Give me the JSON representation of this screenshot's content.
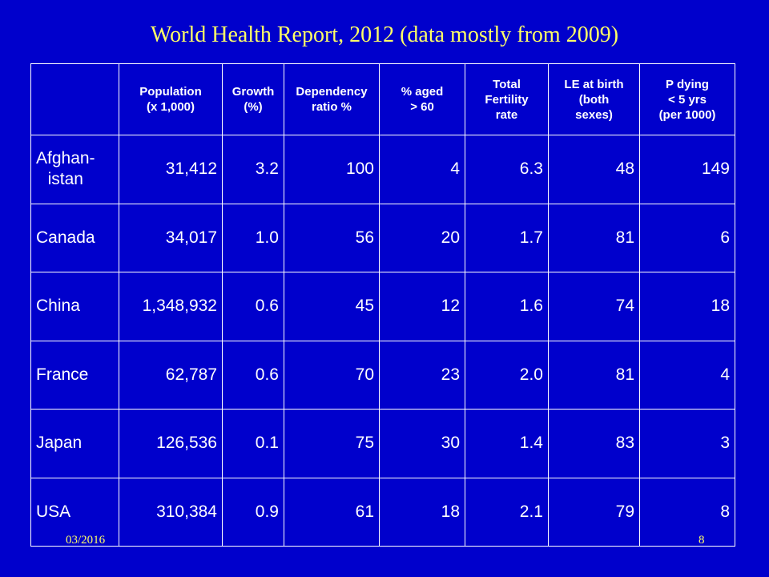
{
  "title": "World Health Report, 2012 (data mostly from 2009)",
  "table": {
    "headers": [
      "",
      "Population\n(x 1,000)",
      "Growth\n(%)",
      "Dependency\nratio %",
      "% aged\n> 60",
      "Total\nFertility\nrate",
      "LE at birth\n(both\nsexes)",
      "P dying\n< 5 yrs\n(per 1000)"
    ],
    "rows": [
      {
        "country": "Afghan-\nistan",
        "values": [
          "31,412",
          "3.2",
          "100",
          "4",
          "6.3",
          "48",
          "149"
        ]
      },
      {
        "country": "Canada",
        "values": [
          "34,017",
          "1.0",
          "56",
          "20",
          "1.7",
          "81",
          "6"
        ]
      },
      {
        "country": "China",
        "values": [
          "1,348,932",
          "0.6",
          "45",
          "12",
          "1.6",
          "74",
          "18"
        ]
      },
      {
        "country": "France",
        "values": [
          "62,787",
          "0.6",
          "70",
          "23",
          "2.0",
          "81",
          "4"
        ]
      },
      {
        "country": "Japan",
        "values": [
          "126,536",
          "0.1",
          "75",
          "30",
          "1.4",
          "83",
          "3"
        ]
      },
      {
        "country": "USA",
        "values": [
          "310,384",
          "0.9",
          "61",
          "18",
          "2.1",
          "79",
          "8"
        ]
      }
    ]
  },
  "footer": {
    "date": "03/2016",
    "page": "8"
  },
  "colors": {
    "background": "#0000cc",
    "title": "#ffff66",
    "text": "#ffffff"
  }
}
